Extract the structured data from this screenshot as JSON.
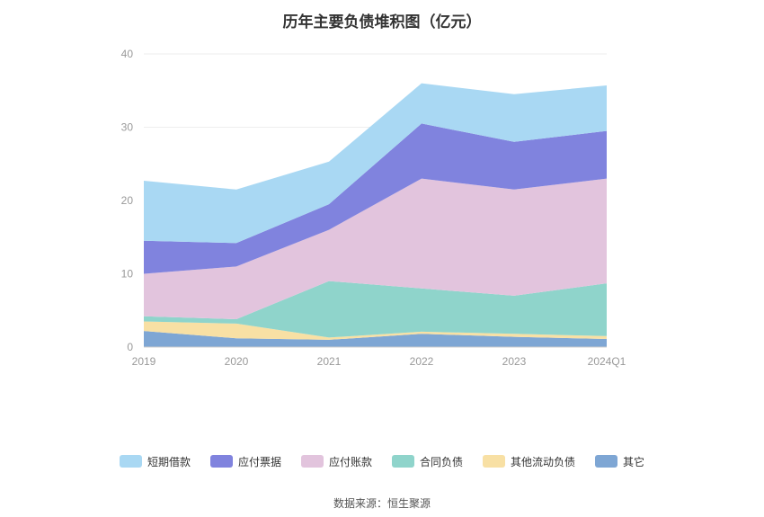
{
  "title": "历年主要负债堆积图（亿元）",
  "footer": {
    "source": "数据来源：恒生聚源"
  },
  "chart_data": {
    "type": "area",
    "stacked": true,
    "title": "历年主要负债堆积图（亿元）",
    "categories": [
      "2019",
      "2020",
      "2021",
      "2022",
      "2023",
      "2024Q1"
    ],
    "series": [
      {
        "name": "短期借款",
        "color": "#a9d8f3",
        "values": [
          8.2,
          7.3,
          5.8,
          5.5,
          6.5,
          6.2
        ]
      },
      {
        "name": "应付票据",
        "color": "#8083de",
        "values": [
          4.5,
          3.2,
          3.5,
          7.5,
          6.5,
          6.5
        ]
      },
      {
        "name": "应付账款",
        "color": "#e2c4dd",
        "values": [
          5.8,
          7.2,
          7.0,
          15.0,
          14.5,
          14.3
        ]
      },
      {
        "name": "合同负债",
        "color": "#8fd4cb",
        "values": [
          0.7,
          0.6,
          7.7,
          5.9,
          5.2,
          7.2
        ]
      },
      {
        "name": "其他流动负债",
        "color": "#f8e0a4",
        "values": [
          1.3,
          2.0,
          0.3,
          0.3,
          0.4,
          0.4
        ]
      },
      {
        "name": "其它",
        "color": "#7ea6d4",
        "values": [
          2.2,
          1.2,
          1.0,
          1.8,
          1.4,
          1.1
        ]
      }
    ],
    "stack_note": "series listed top-to-bottom as in legend; stacked bottom-up in reverse order",
    "xlabel": "",
    "ylabel": "",
    "ylim": [
      0,
      40
    ],
    "yticks": [
      0,
      10,
      20,
      30,
      40
    ],
    "grid": true,
    "legend_position": "bottom"
  }
}
